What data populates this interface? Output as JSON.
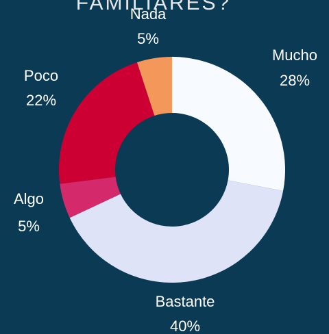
{
  "chart_data": {
    "type": "donut",
    "title": "FAMILIARES?",
    "categories": [
      "Mucho",
      "Bastante",
      "Algo",
      "Poco",
      "Nada"
    ],
    "values": [
      28,
      40,
      5,
      22,
      5
    ],
    "value_labels": [
      "28%",
      "40%",
      "5%",
      "22%",
      "5%"
    ],
    "colors": [
      "#f7fbff",
      "#dee3f8",
      "#d42a6c",
      "#cc0033",
      "#f4975a"
    ]
  }
}
